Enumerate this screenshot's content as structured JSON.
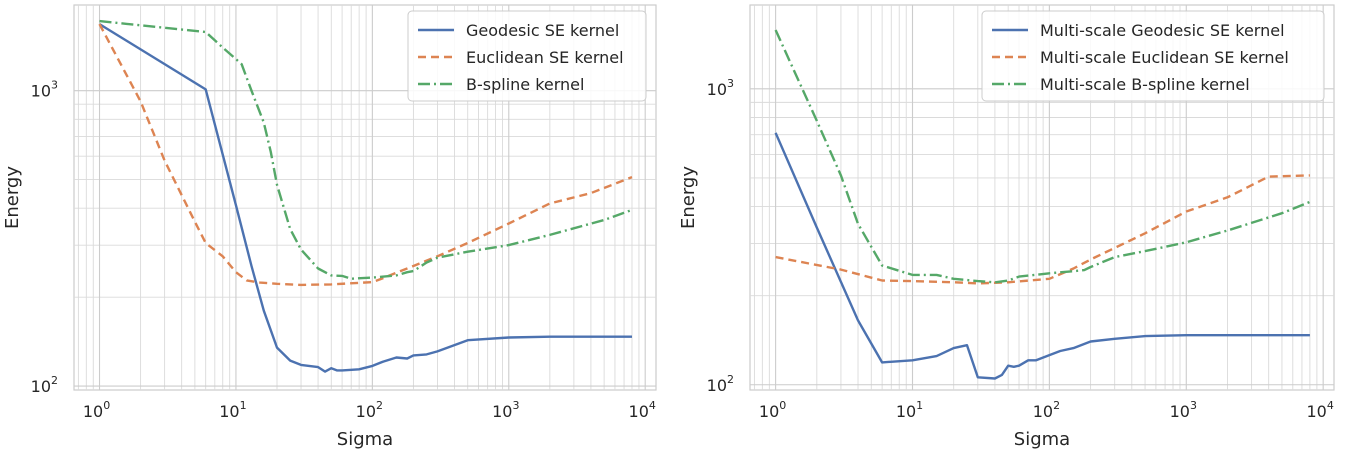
{
  "chart_data": [
    {
      "type": "line",
      "title": "",
      "xlabel": "Sigma",
      "ylabel": "Energy",
      "xscale": "log",
      "yscale": "log",
      "xlim": [
        0.65,
        12000
      ],
      "ylim": [
        97,
        1950
      ],
      "xticks": [
        1,
        10,
        100,
        1000,
        10000
      ],
      "yticks": [
        100,
        1000
      ],
      "grid": true,
      "legend_position": "top-right",
      "series": [
        {
          "name": "Geodesic SE kernel",
          "color": "#4c72b0",
          "dash": "solid",
          "x": [
            1,
            6,
            10,
            13,
            16,
            20,
            25,
            30,
            40,
            45,
            50,
            55,
            60,
            80,
            100,
            120,
            150,
            180,
            200,
            250,
            300,
            500,
            1000,
            2000,
            5000,
            8000
          ],
          "y": [
            1680,
            1010,
            410,
            255,
            180,
            135,
            122,
            118,
            116,
            112,
            115,
            113,
            113,
            114,
            117,
            121,
            125,
            124,
            127,
            128,
            131,
            143,
            146,
            147,
            147,
            147
          ]
        },
        {
          "name": "Euclidean SE kernel",
          "color": "#dd8452",
          "dash": "dashed",
          "x": [
            1,
            2,
            3,
            5,
            6,
            8,
            10,
            12,
            15,
            20,
            30,
            50,
            100,
            120,
            150,
            200,
            300,
            500,
            1000,
            2000,
            4000,
            8000
          ],
          "y": [
            1680,
            920,
            580,
            360,
            305,
            275,
            243,
            228,
            224,
            222,
            220,
            221,
            225,
            232,
            242,
            255,
            275,
            305,
            355,
            415,
            450,
            510
          ]
        },
        {
          "name": "B-spline kernel",
          "color": "#55a868",
          "dash": "dashdot",
          "x": [
            1,
            6,
            8,
            11,
            13,
            16,
            18,
            20,
            25,
            30,
            40,
            50,
            60,
            70,
            100,
            150,
            180,
            200,
            250,
            300,
            500,
            1000,
            2000,
            5000,
            8000
          ],
          "y": [
            1720,
            1580,
            1400,
            1230,
            1000,
            780,
            620,
            480,
            340,
            290,
            250,
            237,
            236,
            231,
            233,
            237,
            243,
            245,
            262,
            272,
            285,
            300,
            325,
            365,
            395
          ]
        }
      ]
    },
    {
      "type": "line",
      "title": "",
      "xlabel": "Sigma",
      "ylabel": "Energy",
      "xscale": "log",
      "yscale": "log",
      "xlim": [
        0.65,
        12000
      ],
      "ylim": [
        96,
        1920
      ],
      "xticks": [
        1,
        10,
        100,
        1000,
        10000
      ],
      "yticks": [
        100,
        1000
      ],
      "grid": true,
      "legend_position": "top-right",
      "series": [
        {
          "name": "Multi-scale Geodesic SE kernel",
          "color": "#4c72b0",
          "dash": "solid",
          "x": [
            1,
            2,
            4,
            6,
            10,
            15,
            20,
            25,
            30,
            40,
            45,
            50,
            55,
            60,
            70,
            80,
            100,
            120,
            150,
            200,
            300,
            500,
            1000,
            5000,
            8000
          ],
          "y": [
            710,
            340,
            165,
            119,
            121,
            125,
            133,
            136,
            106,
            105,
            108,
            116,
            115,
            116,
            121,
            121,
            126,
            130,
            133,
            140,
            143,
            146,
            147,
            147,
            147
          ]
        },
        {
          "name": "Multi-scale Euclidean SE kernel",
          "color": "#dd8452",
          "dash": "dashed",
          "x": [
            1,
            3,
            6,
            10,
            20,
            30,
            50,
            100,
            150,
            200,
            300,
            500,
            1000,
            2000,
            4000,
            8000
          ],
          "y": [
            270,
            245,
            225,
            224,
            222,
            220,
            222,
            228,
            247,
            265,
            290,
            325,
            385,
            430,
            505,
            510
          ]
        },
        {
          "name": "Multi-scale B-spline kernel",
          "color": "#55a868",
          "dash": "dashdot",
          "x": [
            1,
            2,
            3,
            4,
            6,
            10,
            15,
            20,
            30,
            40,
            50,
            60,
            100,
            150,
            180,
            200,
            300,
            500,
            1000,
            2000,
            5000,
            8000
          ],
          "y": [
            1580,
            780,
            510,
            350,
            253,
            235,
            235,
            228,
            224,
            222,
            225,
            232,
            238,
            242,
            244,
            250,
            270,
            283,
            303,
            332,
            380,
            415
          ]
        }
      ]
    }
  ]
}
